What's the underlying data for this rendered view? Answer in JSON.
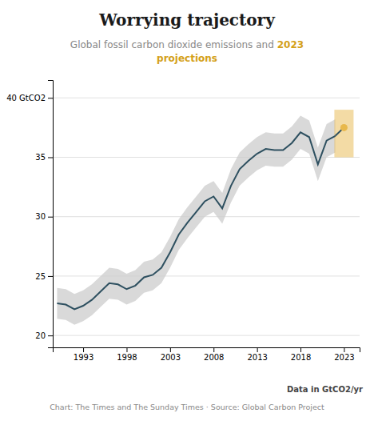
{
  "chart_data": {
    "type": "line",
    "title": "Worrying trajectory",
    "subtitle": [
      "Global fossil carbon dioxide emissions and",
      "2023",
      "projections"
    ],
    "annotations": [
      "Data in GtCO2/yr",
      "Chart: The Times and The Sunday Times · Source: Global Carbon Project"
    ],
    "x": [
      1990,
      1991,
      1992,
      1993,
      1994,
      1995,
      1996,
      1997,
      1998,
      1999,
      2000,
      2001,
      2002,
      2003,
      2004,
      2005,
      2006,
      2007,
      2008,
      2009,
      2010,
      2011,
      2012,
      2013,
      2014,
      2015,
      2016,
      2017,
      2018,
      2019,
      2020,
      2021,
      2022
    ],
    "series": [
      {
        "type": "line",
        "color": "#2e5060",
        "values": [
          22.7,
          22.6,
          22.2,
          22.5,
          23.0,
          23.7,
          24.4,
          24.3,
          23.9,
          24.2,
          24.9,
          25.1,
          25.7,
          27.0,
          28.5,
          29.5,
          30.4,
          31.3,
          31.7,
          30.7,
          32.6,
          34.0,
          34.7,
          35.3,
          35.7,
          35.6,
          35.6,
          36.2,
          37.1,
          36.7,
          34.4,
          36.4,
          36.8
        ]
      },
      {
        "type": "area",
        "color": "#cccccc",
        "upper": [
          24.0,
          23.9,
          23.5,
          23.8,
          24.3,
          25.0,
          25.7,
          25.6,
          25.2,
          25.5,
          26.2,
          26.4,
          27.0,
          28.3,
          29.8,
          30.8,
          31.7,
          32.6,
          33.0,
          32.0,
          34.0,
          35.4,
          36.1,
          36.7,
          37.1,
          37.0,
          37.0,
          37.6,
          38.5,
          38.1,
          35.8,
          37.8,
          38.2
        ],
        "lower": [
          21.4,
          21.3,
          20.9,
          21.2,
          21.7,
          22.4,
          23.1,
          23.0,
          22.6,
          22.9,
          23.6,
          23.8,
          24.4,
          25.7,
          27.2,
          28.2,
          29.1,
          30.0,
          30.4,
          29.4,
          31.2,
          32.6,
          33.3,
          33.9,
          34.3,
          34.2,
          34.2,
          34.8,
          35.7,
          35.3,
          33.0,
          35.0,
          35.4
        ]
      },
      {
        "type": "scatter",
        "color": "#e8b84b",
        "x": [
          2023
        ],
        "values": [
          37.5
        ],
        "upper": [
          39.0
        ],
        "lower": [
          35.0
        ]
      }
    ],
    "xlim": [
      1989.5,
      2024.8
    ],
    "xticks": [
      1993,
      1998,
      2003,
      2008,
      2013,
      2018,
      2023
    ],
    "ylim": [
      19.0,
      41.5
    ],
    "yticks": [
      20,
      25,
      30,
      35,
      {
        "value": 40,
        "label": "40 GtCO2"
      }
    ],
    "grid": true
  }
}
